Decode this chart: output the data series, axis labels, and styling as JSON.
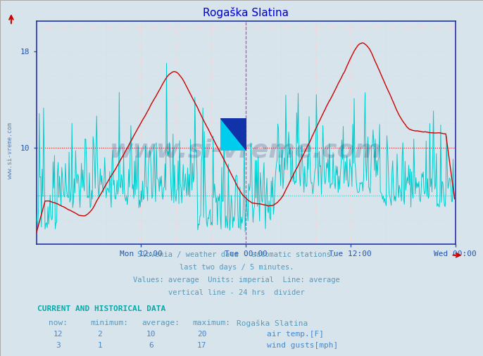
{
  "title": "Rogaška Slatina",
  "fig_bg_color": "#d8e4ec",
  "plot_bg_color": "#d8e4ec",
  "xlim": [
    0,
    576
  ],
  "ylim": [
    2,
    20.5
  ],
  "ytick_positions": [
    10,
    18
  ],
  "ytick_labels": [
    "10",
    "18"
  ],
  "xtick_labels": [
    "Mon 12:00",
    "Tue 00:00",
    "Tue 12:00",
    "Wed 00:00"
  ],
  "xtick_positions": [
    144,
    288,
    432,
    576
  ],
  "air_temp_color": "#cc0000",
  "wind_gusts_color": "#00cccc",
  "air_temp_avg": 10,
  "wind_gusts_avg": 6,
  "vline_color": "#cc44cc",
  "hgrid_color": "#ffcccc",
  "vgrid_color": "#ffcccc",
  "hgrid_avg_air": "#cc0000",
  "hgrid_avg_wind": "#00cccc",
  "subtitle_lines": [
    "Slovenia / weather data - automatic stations.",
    "last two days / 5 minutes.",
    "Values: average  Units: imperial  Line: average",
    "vertical line - 24 hrs  divider"
  ],
  "table_header": "CURRENT AND HISTORICAL DATA",
  "col_headers": [
    "now:",
    "minimum:",
    "average:",
    "maximum:",
    "Rogaška Slatina"
  ],
  "row1": [
    "12",
    "2",
    "10",
    "20"
  ],
  "row2": [
    "3",
    "1",
    "6",
    "17"
  ],
  "row1_label": "air temp.[F]",
  "row2_label": "wind gusts[mph]",
  "watermark": "www.si-vreme.com",
  "watermark_color": "#1a3a6a",
  "left_label": "www.si-vreme.com",
  "title_color": "#0000cc",
  "tick_color": "#2255aa",
  "subtitle_color": "#5599bb",
  "table_header_color": "#00aaaa",
  "table_data_color": "#4488cc",
  "spine_color": "#2233aa",
  "arrow_color": "#cc0000"
}
